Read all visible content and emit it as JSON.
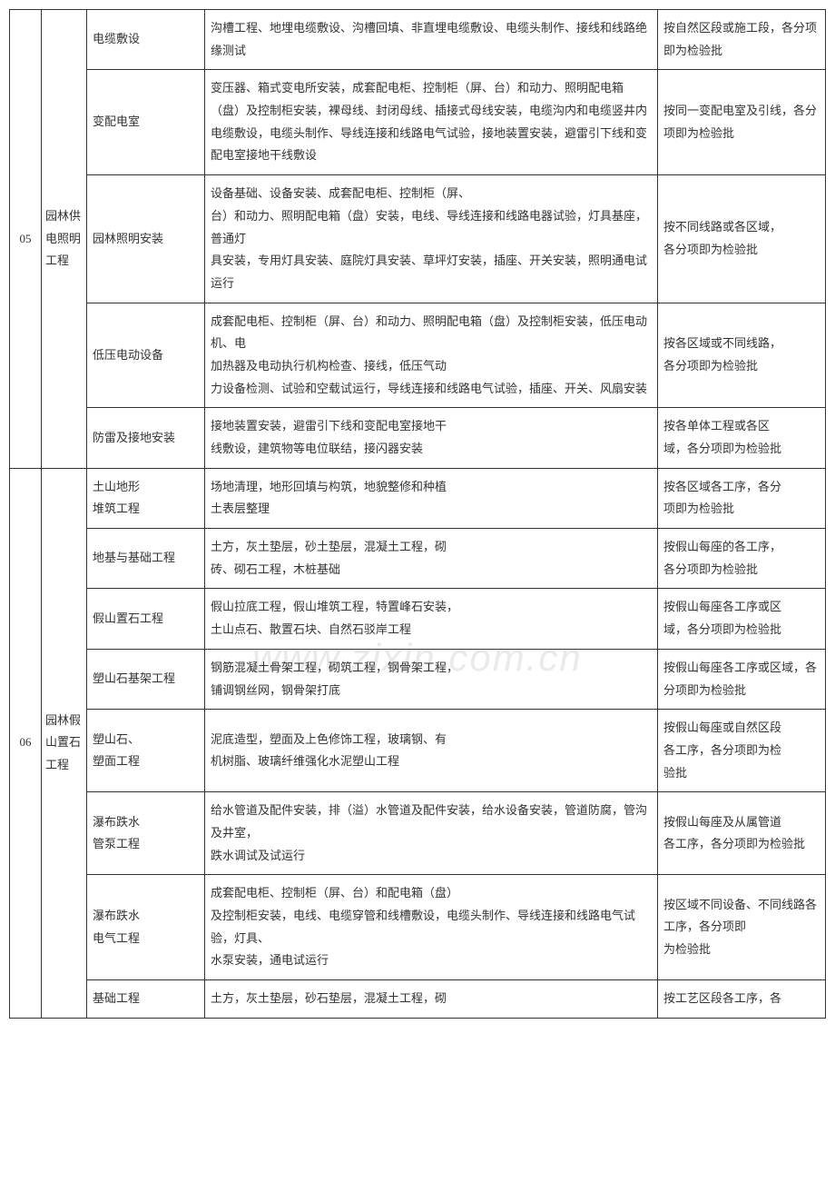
{
  "watermark": "www.zixin.com.cn",
  "rows": [
    {
      "num": "05",
      "numRowspan": 5,
      "cat": "园林供电照明工程",
      "catRowspan": 5,
      "sub": "电缆敷设",
      "detail": "沟槽工程、地埋电缆敷设、沟槽回填、非直埋电缆敷设、电缆头制作、接线和线路绝缘测试",
      "note": "按自然区段或施工段，各分项即为检验批"
    },
    {
      "sub": "变配电室",
      "detail": "变压器、箱式变电所安装，成套配电柜、控制柜（屏、台）和动力、照明配电箱（盘）及控制柜安装，裸母线、封闭母线、插接式母线安装，电缆沟内和电缆竖井内电缆敷设，电缆头制作、导线连接和线路电气试验，接地装置安装，避雷引下线和变配电室接地干线敷设",
      "note": "按同一变配电室及引线，各分项即为检验批"
    },
    {
      "sub": "园林照明安装",
      "detail": "设备基础、设备安装、成套配电柜、控制柜（屏、\n台）和动力、照明配电箱（盘）安装，电线、导线连接和线路电器试验，灯具基座，普通灯\n具安装，专用灯具安装、庭院灯具安装、草坪灯安装，插座、开关安装，照明通电试运行",
      "note": "按不同线路或各区域，\n各分项即为检验批"
    },
    {
      "sub": "低压电动设备",
      "detail": "成套配电柜、控制柜（屏、台）和动力、照明配电箱（盘）及控制柜安装，低压电动机、电\n加热器及电动执行机构检查、接线，低压气动\n力设备检测、试验和空载试运行，导线连接和线路电气试验，插座、开关、风扇安装",
      "note": "按各区域或不同线路，\n各分项即为检验批"
    },
    {
      "sub": "防雷及接地安装",
      "detail": "接地装置安装，避雷引下线和变配电室接地干\n线敷设，建筑物等电位联结，接闪器安装",
      "note": "按各单体工程或各区\n域，各分项即为检验批"
    },
    {
      "num": "06",
      "numRowspan": 8,
      "cat": "园林假\n山置石工程",
      "catRowspan": 8,
      "sub": "土山地形\n堆筑工程",
      "detail": "场地清理，地形回填与构筑，地貌整修和种植\n土表层整理",
      "note": "按各区域各工序，各分\n项即为检验批"
    },
    {
      "sub": "地基与基础工程",
      "detail": "土方，灰土垫层，砂土垫层，混凝土工程，砌\n砖、砌石工程，木桩基础",
      "note": "按假山每座的各工序，\n各分项即为检验批"
    },
    {
      "sub": "假山置石工程",
      "detail": "假山拉底工程，假山堆筑工程，特置峰石安装，\n土山点石、散置石块、自然石驳岸工程",
      "note": "按假山每座各工序或区\n域，各分项即为检验批"
    },
    {
      "sub": "塑山石基架工程",
      "detail": "钢筋混凝土骨架工程，砌筑工程，钢骨架工程，\n铺调钢丝网，钢骨架打底",
      "note": "按假山每座各工序或区域，各分项即为检验批"
    },
    {
      "sub": "塑山石、\n塑面工程",
      "detail": "泥底造型，塑面及上色修饰工程，玻璃钢、有\n机树脂、玻璃纤维强化水泥塑山工程",
      "note": "按假山每座或自然区段\n各工序，各分项即为检\n验批"
    },
    {
      "sub": "瀑布跌水\n管泵工程",
      "detail": "给水管道及配件安装，排（溢）水管道及配件安装，给水设备安装，管道防腐，管沟及井室，\n跌水调试及试运行",
      "note": "按假山每座及从属管道\n各工序，各分项即为检验批"
    },
    {
      "sub": "瀑布跌水\n电气工程",
      "detail": "成套配电柜、控制柜（屏、台）和配电箱（盘）\n及控制柜安装，电线、电缆穿管和线槽敷设，电缆头制作、导线连接和线路电气试验，灯具、\n水泵安装，通电试运行",
      "note": "按区域不同设备、不同线路各工序，各分项即\n为检验批"
    },
    {
      "sub": "基础工程",
      "detail": "土方，灰土垫层，砂石垫层，混凝土工程，砌",
      "note": "按工艺区段各工序，各"
    }
  ]
}
